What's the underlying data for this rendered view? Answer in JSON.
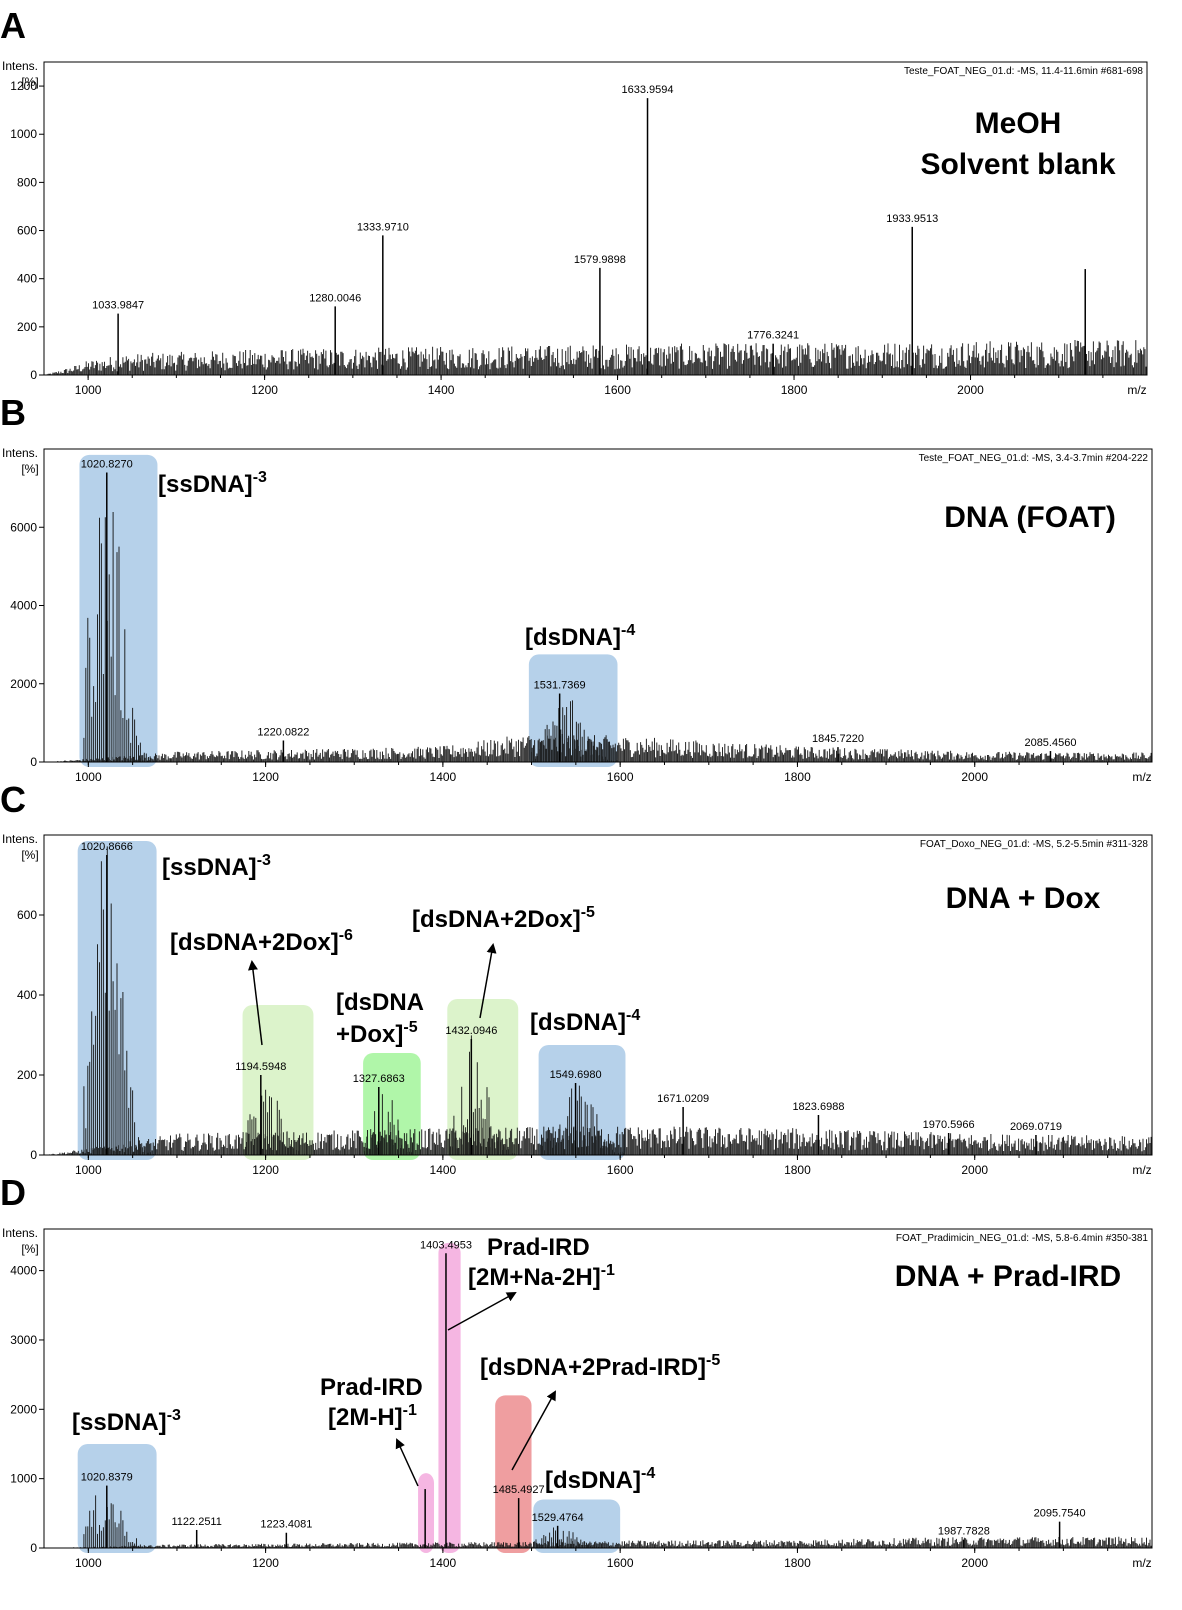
{
  "chart_data": [
    {
      "type": "bar",
      "letter": "A",
      "header": "Teste_FOAT_NEG_01.d: -MS, 11.4-11.6min #681-698",
      "title_lines": [
        "MeOH",
        "Solvent blank"
      ],
      "ylabel_lines": [
        "Intens.",
        "[%]"
      ],
      "xlabel": "m/z",
      "xlim": [
        950,
        2200
      ],
      "ylim": [
        0,
        1300
      ],
      "x_ticks": [
        1000,
        1200,
        1400,
        1600,
        1800,
        2000
      ],
      "y_ticks": [
        0,
        200,
        400,
        600,
        800,
        1000,
        1200
      ],
      "baseline": [
        [
          950,
          0
        ],
        [
          975,
          20
        ],
        [
          1000,
          45
        ],
        [
          1040,
          65
        ],
        [
          1200,
          80
        ],
        [
          1600,
          95
        ],
        [
          2000,
          105
        ],
        [
          2200,
          110
        ]
      ],
      "peaks": [
        {
          "x": 1033.9847,
          "y": 255,
          "label": "1033.9847"
        },
        {
          "x": 1280.0046,
          "y": 285,
          "label": "1280.0046"
        },
        {
          "x": 1333.971,
          "y": 580,
          "label": "1333.9710"
        },
        {
          "x": 1579.9898,
          "y": 445,
          "label": "1579.9898"
        },
        {
          "x": 1633.9594,
          "y": 1150,
          "label": "1633.9594"
        },
        {
          "x": 1776.3241,
          "y": 130,
          "label": "1776.3241"
        },
        {
          "x": 1933.9513,
          "y": 615,
          "label": "1933.9513"
        },
        {
          "x": 2130,
          "y": 440,
          "label": ""
        }
      ],
      "regions": [],
      "annotations": []
    },
    {
      "type": "bar",
      "letter": "B",
      "header": "Teste_FOAT_NEG_01.d: -MS, 3.4-3.7min #204-222",
      "title_lines": [
        "DNA (FOAT)"
      ],
      "ylabel_lines": [
        "Intens.",
        "[%]"
      ],
      "xlabel": "m/z",
      "xlim": [
        950,
        2200
      ],
      "ylim": [
        0,
        8000
      ],
      "x_ticks": [
        1000,
        1200,
        1400,
        1600,
        1800,
        2000
      ],
      "y_ticks": [
        0,
        2000,
        4000,
        6000
      ],
      "baseline": [
        [
          950,
          0
        ],
        [
          990,
          50
        ],
        [
          1100,
          200
        ],
        [
          1400,
          300
        ],
        [
          1500,
          550
        ],
        [
          1600,
          500
        ],
        [
          1800,
          300
        ],
        [
          2000,
          200
        ],
        [
          2200,
          180
        ]
      ],
      "peaks": [
        {
          "x": 1020.827,
          "y": 7400,
          "label": "1020.8270"
        },
        {
          "x": 1220.0822,
          "y": 550,
          "label": "1220.0822"
        },
        {
          "x": 1531.7369,
          "y": 1750,
          "label": "1531.7369"
        },
        {
          "x": 1845.722,
          "y": 380,
          "label": "1845.7220"
        },
        {
          "x": 2085.456,
          "y": 280,
          "label": "2085.4560"
        }
      ],
      "regions": [
        {
          "x0": 990,
          "x1": 1078,
          "y_top": 7850,
          "color": "#a9c9e6",
          "label": "[ssDNA]",
          "sup": "-3",
          "envelope": {
            "x0": 995,
            "x1": 1078,
            "peak_x": 1020,
            "peak_y": 7400
          }
        },
        {
          "x0": 1497,
          "x1": 1597,
          "y_top": 2750,
          "color": "#a9c9e6",
          "label": "[dsDNA]",
          "sup": "-4",
          "envelope": {
            "x0": 1500,
            "x1": 1598,
            "peak_x": 1540,
            "peak_y": 1750
          }
        }
      ],
      "annotations": []
    },
    {
      "type": "bar",
      "letter": "C",
      "header": "FOAT_Doxo_NEG_01.d: -MS, 5.2-5.5min #311-328",
      "title_lines": [
        "DNA + Dox"
      ],
      "ylabel_lines": [
        "Intens.",
        "[%]"
      ],
      "xlabel": "m/z",
      "xlim": [
        950,
        2200
      ],
      "ylim": [
        0,
        800
      ],
      "x_ticks": [
        1000,
        1200,
        1400,
        1600,
        1800,
        2000
      ],
      "y_ticks": [
        0,
        200,
        400,
        600
      ],
      "baseline": [
        [
          950,
          0
        ],
        [
          990,
          10
        ],
        [
          1100,
          40
        ],
        [
          1400,
          50
        ],
        [
          1600,
          55
        ],
        [
          1800,
          50
        ],
        [
          2000,
          40
        ],
        [
          2200,
          35
        ]
      ],
      "peaks": [
        {
          "x": 1020.8666,
          "y": 750,
          "label": "1020.8666"
        },
        {
          "x": 1194.5948,
          "y": 200,
          "label": "1194.5948"
        },
        {
          "x": 1327.6863,
          "y": 170,
          "label": "1327.6863"
        },
        {
          "x": 1432.0946,
          "y": 290,
          "label": "1432.0946"
        },
        {
          "x": 1549.698,
          "y": 180,
          "label": "1549.6980"
        },
        {
          "x": 1671.0209,
          "y": 120,
          "label": "1671.0209"
        },
        {
          "x": 1823.6988,
          "y": 100,
          "label": "1823.6988"
        },
        {
          "x": 1970.5966,
          "y": 55,
          "label": "1970.5966"
        },
        {
          "x": 2069.0719,
          "y": 50,
          "label": "2069.0719"
        }
      ],
      "regions": [
        {
          "x0": 988,
          "x1": 1077,
          "y_top": 785,
          "color": "#a9c9e6",
          "label": "[ssDNA]",
          "sup": "-3",
          "envelope": {
            "x0": 995,
            "x1": 1075,
            "peak_x": 1020,
            "peak_y": 750
          }
        },
        {
          "x0": 1174,
          "x1": 1254,
          "y_top": 375,
          "color": "#d6f1c2",
          "label": "[dsDNA+2Dox]",
          "sup": "-6",
          "envelope": {
            "x0": 1178,
            "x1": 1250,
            "peak_x": 1200,
            "peak_y": 200
          }
        },
        {
          "x0": 1310,
          "x1": 1375,
          "y_top": 255,
          "color": "#a2f59a",
          "label": "[dsDNA",
          "label2": "+Dox]",
          "sup": "-5",
          "envelope": {
            "x0": 1312,
            "x1": 1372,
            "peak_x": 1335,
            "peak_y": 170
          }
        },
        {
          "x0": 1405,
          "x1": 1485,
          "y_top": 390,
          "color": "#d6f1c2",
          "label": "[dsDNA+2Dox]",
          "sup": "-5",
          "envelope": {
            "x0": 1408,
            "x1": 1482,
            "peak_x": 1435,
            "peak_y": 290
          }
        },
        {
          "x0": 1508,
          "x1": 1606,
          "y_top": 275,
          "color": "#a9c9e6",
          "label": "[dsDNA]",
          "sup": "-4",
          "envelope": {
            "x0": 1510,
            "x1": 1605,
            "peak_x": 1552,
            "peak_y": 180
          }
        }
      ],
      "annotations": []
    },
    {
      "type": "bar",
      "letter": "D",
      "header": "FOAT_Pradimicin_NEG_01.d: -MS, 5.8-6.4min #350-381",
      "title_lines": [
        "DNA + Prad-IRD"
      ],
      "ylabel_lines": [
        "Intens.",
        "[%]"
      ],
      "xlabel": "m/z",
      "xlim": [
        950,
        2200
      ],
      "ylim": [
        0,
        4600
      ],
      "x_ticks": [
        1000,
        1200,
        1400,
        1600,
        1800,
        2000
      ],
      "y_ticks": [
        0,
        1000,
        2000,
        3000,
        4000
      ],
      "baseline": [
        [
          950,
          0
        ],
        [
          990,
          10
        ],
        [
          1100,
          40
        ],
        [
          1400,
          60
        ],
        [
          1600,
          80
        ],
        [
          1800,
          90
        ],
        [
          2000,
          120
        ],
        [
          2200,
          120
        ]
      ],
      "peaks": [
        {
          "x": 1020.8379,
          "y": 900,
          "label": "1020.8379"
        },
        {
          "x": 1122.2511,
          "y": 260,
          "label": "1122.2511"
        },
        {
          "x": 1223.4081,
          "y": 220,
          "label": "1223.4081"
        },
        {
          "x": 1380,
          "y": 850,
          "label": ""
        },
        {
          "x": 1403.4953,
          "y": 4250,
          "label": "1403.4953"
        },
        {
          "x": 1485.4927,
          "y": 720,
          "label": "1485.4927"
        },
        {
          "x": 1529.4764,
          "y": 320,
          "label": "1529.4764"
        },
        {
          "x": 1987.7828,
          "y": 120,
          "label": "1987.7828"
        },
        {
          "x": 2095.754,
          "y": 380,
          "label": "2095.7540"
        }
      ],
      "regions": [
        {
          "x0": 988,
          "x1": 1077,
          "y_top": 1500,
          "color": "#a9c9e6",
          "label": "[ssDNA]",
          "sup": "-3",
          "envelope": {
            "x0": 995,
            "x1": 1078,
            "peak_x": 1020,
            "peak_y": 900
          }
        },
        {
          "x0": 1372,
          "x1": 1390,
          "y_top": 1080,
          "color": "#f3a9dd",
          "label": "",
          "sup": "",
          "envelope": null
        },
        {
          "x0": 1395,
          "x1": 1420,
          "y_top": 4400,
          "color": "#f3a9dd",
          "label": "",
          "sup": "",
          "envelope": null
        },
        {
          "x0": 1459,
          "x1": 1500,
          "y_top": 2200,
          "color": "#ec8d8f",
          "label": "",
          "sup": "",
          "envelope": null
        },
        {
          "x0": 1502,
          "x1": 1600,
          "y_top": 700,
          "color": "#a9c9e6",
          "label": "[dsDNA]",
          "sup": "-4",
          "envelope": {
            "x0": 1505,
            "x1": 1600,
            "peak_x": 1530,
            "peak_y": 320
          }
        }
      ],
      "annotations": [
        {
          "line1": "Prad-IRD",
          "line2": "[2M-H]",
          "sup": "-1"
        },
        {
          "line1": "Prad-IRD",
          "line2": "[2M+Na-2H]",
          "sup": "-1"
        },
        {
          "line1": "[dsDNA+2Prad-IRD]",
          "line2": "",
          "sup": "-5"
        }
      ]
    }
  ]
}
